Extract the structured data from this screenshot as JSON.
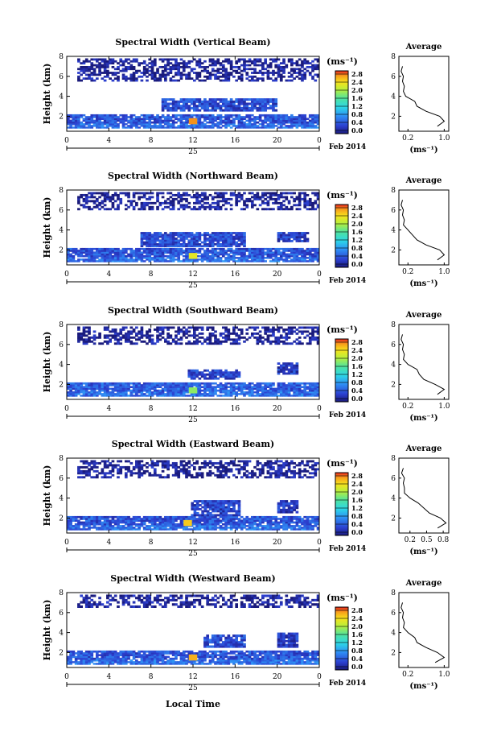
{
  "shared": {
    "ylabel": "Height (km)",
    "x_ticks": [
      "0",
      "4",
      "8",
      "12",
      "16",
      "20",
      "0"
    ],
    "day_label": "25",
    "date_label": "Feb 2014",
    "unit_label": "(ms⁻¹)",
    "colorbar_ticks": [
      "2.8",
      "2.4",
      "2.0",
      "1.6",
      "1.2",
      "0.8",
      "0.4",
      "0.0"
    ],
    "y_ticks": [
      "2",
      "4",
      "6",
      "8"
    ],
    "avg_title": "Average",
    "avg_xlabel": "(ms⁻¹)",
    "xlabel": "Local Time"
  },
  "chart_data": [
    {
      "type": "heatmap",
      "title": "Spectral Width (Vertical Beam)",
      "xlabel": "",
      "ylabel": "Height (km)",
      "xlim": [
        0,
        24
      ],
      "ylim": [
        0.5,
        8
      ],
      "zlim": [
        0.0,
        2.8
      ],
      "layers": [
        {
          "x": [
            0,
            24
          ],
          "y": [
            0.8,
            1.3
          ],
          "z": 0.6
        },
        {
          "x": [
            0,
            24
          ],
          "y": [
            1.3,
            2.2
          ],
          "z": 0.45
        },
        {
          "x": [
            9,
            20
          ],
          "y": [
            2.5,
            3.8
          ],
          "z": 0.4
        },
        {
          "x": [
            1,
            24
          ],
          "y": [
            5.5,
            7.8
          ],
          "z": 0.1
        }
      ],
      "hotspot": {
        "x": 12,
        "y": 1.5,
        "z": 2.6
      },
      "average": {
        "xticks": [
          "0.2",
          "1.0"
        ],
        "xlim": [
          0,
          1.1
        ],
        "profile": [
          [
            0.85,
            1.0
          ],
          [
            1.0,
            1.5
          ],
          [
            0.9,
            2.0
          ],
          [
            0.6,
            2.5
          ],
          [
            0.4,
            3.0
          ],
          [
            0.35,
            3.5
          ],
          [
            0.15,
            4.0
          ],
          [
            0.1,
            4.5
          ],
          [
            0.12,
            5.0
          ],
          [
            0.08,
            5.5
          ],
          [
            0.1,
            6.0
          ],
          [
            0.05,
            6.5
          ],
          [
            0.08,
            7.0
          ]
        ]
      }
    },
    {
      "type": "heatmap",
      "title": "Spectral Width (Northward Beam)",
      "xlabel": "",
      "ylabel": "Height (km)",
      "xlim": [
        0,
        24
      ],
      "ylim": [
        0.5,
        8
      ],
      "zlim": [
        0.0,
        2.8
      ],
      "layers": [
        {
          "x": [
            0,
            24
          ],
          "y": [
            0.8,
            1.3
          ],
          "z": 0.6
        },
        {
          "x": [
            0,
            24
          ],
          "y": [
            1.3,
            2.2
          ],
          "z": 0.45
        },
        {
          "x": [
            7,
            17
          ],
          "y": [
            2.3,
            3.8
          ],
          "z": 0.4
        },
        {
          "x": [
            20,
            23
          ],
          "y": [
            2.8,
            3.8
          ],
          "z": 0.3
        },
        {
          "x": [
            1,
            24
          ],
          "y": [
            6.0,
            7.8
          ],
          "z": 0.1
        }
      ],
      "hotspot": {
        "x": 12,
        "y": 1.4,
        "z": 2.2
      },
      "average": {
        "xticks": [
          "0.2",
          "1.0"
        ],
        "xlim": [
          0,
          1.1
        ],
        "profile": [
          [
            0.85,
            1.0
          ],
          [
            1.0,
            1.5
          ],
          [
            0.9,
            2.0
          ],
          [
            0.6,
            2.5
          ],
          [
            0.4,
            3.0
          ],
          [
            0.3,
            3.5
          ],
          [
            0.2,
            4.0
          ],
          [
            0.1,
            4.5
          ],
          [
            0.12,
            5.0
          ],
          [
            0.08,
            5.5
          ],
          [
            0.1,
            6.0
          ],
          [
            0.05,
            6.5
          ],
          [
            0.08,
            7.0
          ]
        ]
      }
    },
    {
      "type": "heatmap",
      "title": "Spectral Width (Southward Beam)",
      "xlabel": "",
      "ylabel": "Height (km)",
      "xlim": [
        0,
        24
      ],
      "ylim": [
        0.5,
        8
      ],
      "zlim": [
        0.0,
        2.8
      ],
      "layers": [
        {
          "x": [
            0,
            24
          ],
          "y": [
            0.8,
            1.3
          ],
          "z": 0.6
        },
        {
          "x": [
            0,
            24
          ],
          "y": [
            1.3,
            2.2
          ],
          "z": 0.5
        },
        {
          "x": [
            11.5,
            16.5
          ],
          "y": [
            2.5,
            3.5
          ],
          "z": 0.35
        },
        {
          "x": [
            20,
            22
          ],
          "y": [
            3.0,
            4.2
          ],
          "z": 0.3
        },
        {
          "x": [
            1,
            24
          ],
          "y": [
            6.0,
            7.8
          ],
          "z": 0.1
        }
      ],
      "hotspot": {
        "x": 12,
        "y": 1.4,
        "z": 1.8
      },
      "average": {
        "xticks": [
          "0.2",
          "1.0"
        ],
        "xlim": [
          0,
          1.1
        ],
        "profile": [
          [
            0.85,
            1.0
          ],
          [
            1.0,
            1.5
          ],
          [
            0.8,
            2.0
          ],
          [
            0.55,
            2.5
          ],
          [
            0.45,
            3.0
          ],
          [
            0.4,
            3.5
          ],
          [
            0.2,
            4.0
          ],
          [
            0.1,
            4.5
          ],
          [
            0.12,
            5.0
          ],
          [
            0.08,
            5.5
          ],
          [
            0.1,
            6.0
          ],
          [
            0.05,
            6.5
          ],
          [
            0.08,
            7.0
          ]
        ]
      }
    },
    {
      "type": "heatmap",
      "title": "Spectral Width (Eastward Beam)",
      "xlabel": "",
      "ylabel": "Height (km)",
      "xlim": [
        0,
        24
      ],
      "ylim": [
        0.5,
        8
      ],
      "zlim": [
        0.0,
        2.8
      ],
      "layers": [
        {
          "x": [
            0,
            24
          ],
          "y": [
            0.8,
            1.3
          ],
          "z": 0.6
        },
        {
          "x": [
            0,
            24
          ],
          "y": [
            1.3,
            2.2
          ],
          "z": 0.45
        },
        {
          "x": [
            11.8,
            16.5
          ],
          "y": [
            2.2,
            3.8
          ],
          "z": 0.35
        },
        {
          "x": [
            20,
            22
          ],
          "y": [
            2.5,
            3.8
          ],
          "z": 0.3
        },
        {
          "x": [
            1,
            24
          ],
          "y": [
            6.0,
            7.8
          ],
          "z": 0.1
        }
      ],
      "hotspot": {
        "x": 11.5,
        "y": 1.5,
        "z": 2.4
      },
      "average": {
        "xticks": [
          "0.2",
          "0.5",
          "0.8"
        ],
        "xlim": [
          0,
          0.9
        ],
        "profile": [
          [
            0.7,
            1.0
          ],
          [
            0.85,
            1.5
          ],
          [
            0.75,
            2.0
          ],
          [
            0.55,
            2.5
          ],
          [
            0.45,
            3.0
          ],
          [
            0.35,
            3.5
          ],
          [
            0.2,
            4.0
          ],
          [
            0.1,
            4.5
          ],
          [
            0.1,
            5.0
          ],
          [
            0.08,
            5.5
          ],
          [
            0.1,
            6.0
          ],
          [
            0.05,
            6.5
          ],
          [
            0.08,
            7.0
          ]
        ]
      }
    },
    {
      "type": "heatmap",
      "title": "Spectral Width (Westward Beam)",
      "xlabel": "Local Time",
      "ylabel": "Height (km)",
      "xlim": [
        0,
        24
      ],
      "ylim": [
        0.5,
        8
      ],
      "zlim": [
        0.0,
        2.8
      ],
      "layers": [
        {
          "x": [
            0,
            24
          ],
          "y": [
            0.8,
            1.3
          ],
          "z": 0.6
        },
        {
          "x": [
            0,
            24
          ],
          "y": [
            1.3,
            2.2
          ],
          "z": 0.45
        },
        {
          "x": [
            13,
            17
          ],
          "y": [
            2.5,
            3.8
          ],
          "z": 0.4
        },
        {
          "x": [
            20,
            22
          ],
          "y": [
            2.5,
            4.0
          ],
          "z": 0.3
        },
        {
          "x": [
            1,
            24
          ],
          "y": [
            6.5,
            7.8
          ],
          "z": 0.1
        }
      ],
      "hotspot": {
        "x": 12,
        "y": 1.5,
        "z": 2.5
      },
      "average": {
        "xticks": [
          "0.2",
          "1.0"
        ],
        "xlim": [
          0,
          1.1
        ],
        "profile": [
          [
            0.8,
            1.0
          ],
          [
            1.0,
            1.5
          ],
          [
            0.85,
            2.0
          ],
          [
            0.6,
            2.5
          ],
          [
            0.4,
            3.0
          ],
          [
            0.35,
            3.5
          ],
          [
            0.2,
            4.0
          ],
          [
            0.1,
            4.5
          ],
          [
            0.12,
            5.0
          ],
          [
            0.08,
            5.5
          ],
          [
            0.1,
            6.0
          ],
          [
            0.05,
            6.5
          ],
          [
            0.08,
            7.0
          ]
        ]
      }
    }
  ]
}
